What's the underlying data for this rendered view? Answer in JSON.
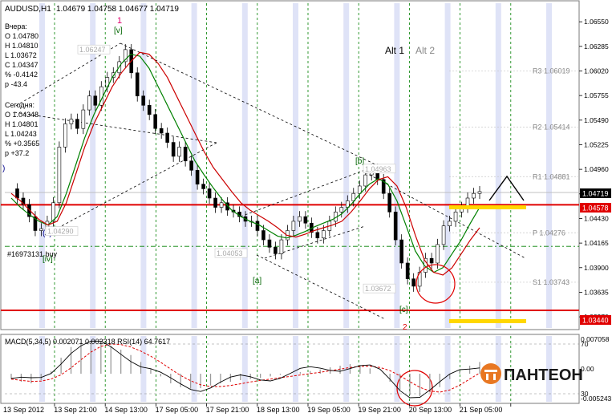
{
  "header": {
    "symbol_tf": "AUDUSD,H1",
    "ohlc": "1.04679 1.04758 1.04677 1.04719"
  },
  "info": {
    "yesterday": [
      "Вчера:",
      "O 1.04780",
      "H 1.04810",
      "L 1.03672",
      "C 1.04347",
      "% -0.4142",
      "p -43.4"
    ],
    "today": [
      "Сегодня:",
      "O 1.04348",
      "H 1.04801",
      "L 1.04243",
      "% +0.3565",
      "p +37.2"
    ]
  },
  "order_label": "#16973131 buy",
  "wave_labels": {
    "w1": "1",
    "v_top": "[v]",
    "iv": "[iv]",
    "c_start": "(c)",
    "a": "[a]",
    "b": "[b]",
    "c": "[c]",
    "w2": "2",
    "b_left": ")"
  },
  "alt": {
    "alt1": "Alt 1",
    "alt2": "Alt 2"
  },
  "level_labels": [
    {
      "text": "R3 1.06019",
      "price": 1.06019
    },
    {
      "text": "R2 1.05414",
      "price": 1.05414
    },
    {
      "text": "R1 1.04881",
      "price": 1.04881
    },
    {
      "text": "P 1.04276",
      "price": 1.04276
    },
    {
      "text": "S1 1.03743",
      "price": 1.03743
    }
  ],
  "price_box_labels": [
    {
      "text": "1.06247",
      "x": 97,
      "price": 1.06247
    },
    {
      "text": "1.04290",
      "x": 57,
      "price": 1.0429
    },
    {
      "text": "1.04053",
      "x": 268,
      "price": 1.04053
    },
    {
      "text": "1.04963",
      "x": 453,
      "price": 1.04963
    },
    {
      "text": "1.03672",
      "x": 453,
      "price": 1.03672
    }
  ],
  "current_price": "1.04719",
  "red_line_price": "1.04578",
  "support_price": "1.03440",
  "colors": {
    "bull": "#000000",
    "ma_fast": "#cc0000",
    "ma_slow": "#008000",
    "red_line": "#e00000",
    "yellow": "#ffd700",
    "grid": "#008000",
    "session_band": "#dfe3f7",
    "dash": "#000000",
    "bg": "#ffffff"
  },
  "indicator": {
    "title": "MACD(5,34,5) 0.002071 0.002318  RSI(14) 64.7617",
    "ticks": [
      "0.007058",
      "70",
      "0.00",
      "30",
      "-0.005243"
    ]
  },
  "x_ticks": [
    "13 Sep 2012",
    "13 Sep 21:00",
    "14 Sep 13:00",
    "17 Sep 05:00",
    "17 Sep 21:00",
    "18 Sep 13:00",
    "19 Sep 05:00",
    "19 Sep 21:00",
    "20 Sep 13:00",
    "21 Sep 05:00"
  ],
  "logo": "ПАНТЕОН",
  "chart_data": {
    "type": "candlestick",
    "title": "AUDUSD,H1",
    "y_ticks": [
      1.0655,
      1.06285,
      1.0602,
      1.05755,
      1.0549,
      1.05225,
      1.0496,
      1.04695,
      1.0443,
      1.04165,
      1.039,
      1.03635,
      1.0337
    ],
    "y_tick_labels": [
      "1.06550",
      "1.06285",
      "1.06020",
      "1.05755",
      "1.05490",
      "1.05225",
      "1.04960",
      "1.04695",
      "1.04430",
      "1.04165",
      "1.03900",
      "1.03635",
      "1.03370"
    ],
    "ylim": [
      1.0325,
      1.0675
    ],
    "x_categories": [
      "13 Sep 2012",
      "13 Sep 21:00",
      "14 Sep 13:00",
      "17 Sep 05:00",
      "17 Sep 21:00",
      "18 Sep 13:00",
      "19 Sep 05:00",
      "19 Sep 21:00",
      "20 Sep 13:00",
      "21 Sep 05:00"
    ],
    "price_path": [
      1.0475,
      1.0465,
      1.0458,
      1.0445,
      1.043,
      1.0432,
      1.044,
      1.046,
      1.052,
      1.0545,
      1.055,
      1.054,
      1.056,
      1.0575,
      1.0565,
      1.0585,
      1.0595,
      1.06,
      1.0612,
      1.0625,
      1.06,
      1.0575,
      1.0565,
      1.0555,
      1.054,
      1.0535,
      1.0525,
      1.051,
      1.052,
      1.0505,
      1.0495,
      1.048,
      1.0475,
      1.0465,
      1.0455,
      1.046,
      1.0452,
      1.045,
      1.0445,
      1.044,
      1.044,
      1.043,
      1.042,
      1.0412,
      1.0405,
      1.042,
      1.043,
      1.044,
      1.0445,
      1.0438,
      1.0428,
      1.0422,
      1.043,
      1.044,
      1.045,
      1.0455,
      1.0462,
      1.047,
      1.0478,
      1.049,
      1.0496,
      1.0485,
      1.047,
      1.045,
      1.042,
      1.0395,
      1.0378,
      1.037,
      1.0385,
      1.04,
      1.0395,
      1.0415,
      1.0435,
      1.044,
      1.045,
      1.0455,
      1.0465,
      1.047,
      1.0472
    ],
    "ma_fast": [
      1.047,
      1.0462,
      1.0452,
      1.0442,
      1.0436,
      1.044,
      1.046,
      1.049,
      1.052,
      1.0545,
      1.0565,
      1.0585,
      1.06,
      1.0612,
      1.0622,
      1.062,
      1.061,
      1.0595,
      1.0575,
      1.0555,
      1.0535,
      1.0515,
      1.0498,
      1.0485,
      1.0472,
      1.046,
      1.0452,
      1.0446,
      1.044,
      1.0433,
      1.0425,
      1.0423,
      1.0426,
      1.043,
      1.0433,
      1.0436,
      1.044,
      1.045,
      1.0462,
      1.0475,
      1.0485,
      1.0488,
      1.0478,
      1.0455,
      1.0425,
      1.0398,
      1.0385,
      1.0382,
      1.039,
      1.0405,
      1.042,
      1.0433
    ],
    "ma_slow": [
      1.0465,
      1.0455,
      1.0447,
      1.044,
      1.0436,
      1.0445,
      1.047,
      1.05,
      1.053,
      1.0555,
      1.0575,
      1.0595,
      1.061,
      1.062,
      1.0618,
      1.0605,
      1.0585,
      1.0565,
      1.0545,
      1.0525,
      1.0505,
      1.049,
      1.0476,
      1.0463,
      1.0452,
      1.0445,
      1.044,
      1.0436,
      1.043,
      1.0424,
      1.0422,
      1.0425,
      1.0429,
      1.0434,
      1.0438,
      1.0442,
      1.0448,
      1.0458,
      1.047,
      1.048,
      1.0486,
      1.048,
      1.0462,
      1.0435,
      1.0408,
      1.0392,
      1.0385,
      1.039,
      1.0405,
      1.042,
      1.0438,
      1.0455
    ],
    "horizontal_lines": [
      {
        "name": "red",
        "price": 1.04578
      },
      {
        "name": "support",
        "price": 1.0344
      },
      {
        "name": "dash-dot",
        "price": 1.0413
      },
      {
        "name": "gray-R1",
        "price": 1.0471
      }
    ],
    "indicator_ylim": [
      -0.005243,
      0.007058
    ],
    "macd_hist": [
      -0.001,
      -0.0015,
      -0.0018,
      -0.0012,
      0.0005,
      0.003,
      0.005,
      0.0058,
      0.006,
      0.0058,
      0.0052,
      0.0045,
      0.0035,
      0.0022,
      0.001,
      -0.0005,
      -0.0018,
      -0.0025,
      -0.0028,
      -0.0027,
      -0.0022,
      -0.0018,
      -0.0015,
      -0.0012,
      -0.001,
      -0.0008,
      -0.0005,
      -0.0002,
      0.0,
      0.0003,
      0.0005,
      0.0008,
      0.0012,
      0.0015,
      0.0018,
      0.0016,
      0.001,
      0.0,
      -0.0015,
      -0.003,
      -0.004,
      -0.0042,
      -0.0035,
      -0.0025,
      -0.001,
      0.0005,
      0.0015,
      0.0022
    ]
  }
}
